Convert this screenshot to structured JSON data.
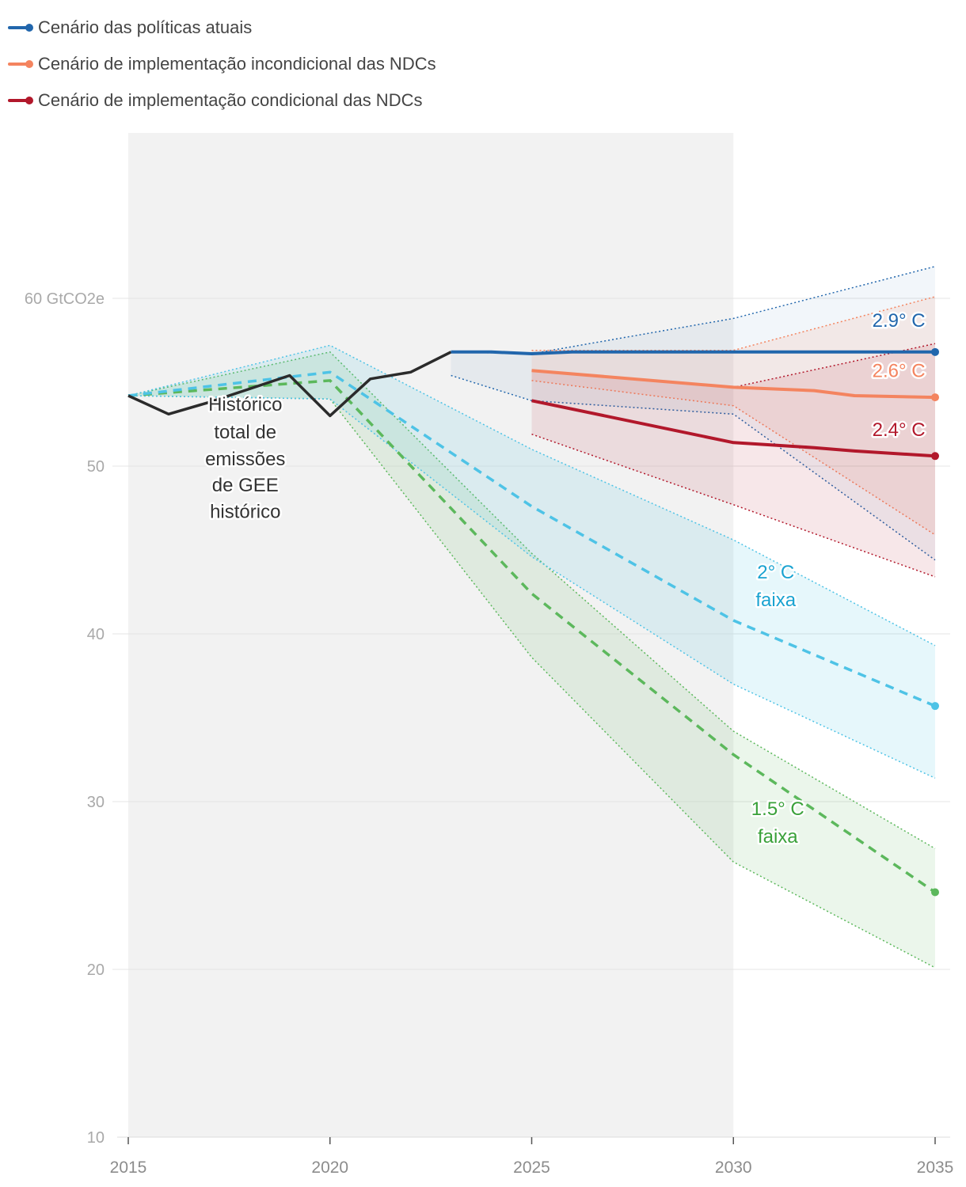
{
  "legend": {
    "items": [
      {
        "label": "Cenário das políticas atuais",
        "color": "#2166ac"
      },
      {
        "label": "Cenário de implementação incondicional das NDCs",
        "color": "#f4845f"
      },
      {
        "label": "Cenário de implementação condicional das NDCs",
        "color": "#b2182b"
      }
    ]
  },
  "chart_data": {
    "type": "line",
    "title": "",
    "xlabel": "",
    "ylabel": "GtCO2e",
    "xlim": [
      2015,
      2035
    ],
    "ylim": [
      10,
      70
    ],
    "x_ticks": [
      "2015",
      "2020",
      "2025",
      "2030",
      "2035"
    ],
    "y_ticks": [
      {
        "value": 60,
        "label": "60 GtCO2e"
      },
      {
        "value": 50,
        "label": "50"
      },
      {
        "value": 40,
        "label": "40"
      },
      {
        "value": 30,
        "label": "30"
      },
      {
        "value": 20,
        "label": "20"
      },
      {
        "value": 10,
        "label": "10"
      }
    ],
    "historical_shading": [
      2015,
      2030
    ],
    "historical": {
      "name": "Histórico total de emissões de GEE histórico",
      "color": "#2b2b2b",
      "points": [
        [
          2015,
          54.2
        ],
        [
          2016,
          53.1
        ],
        [
          2017,
          53.8
        ],
        [
          2018,
          54.6
        ],
        [
          2019,
          55.4
        ],
        [
          2020,
          53.0
        ],
        [
          2021,
          55.2
        ],
        [
          2022,
          55.6
        ],
        [
          2023,
          56.8
        ]
      ]
    },
    "bands": [
      {
        "name": "1.5° C faixa",
        "color": "#5cb85c",
        "upper": [
          [
            2015,
            54.2
          ],
          [
            2020,
            56.8
          ],
          [
            2025,
            44.8
          ],
          [
            2030,
            34.2
          ],
          [
            2035,
            27.2
          ]
        ],
        "lower": [
          [
            2015,
            54.2
          ],
          [
            2020,
            54.0
          ],
          [
            2025,
            38.6
          ],
          [
            2030,
            26.4
          ],
          [
            2035,
            20.1
          ]
        ],
        "median": [
          [
            2015,
            54.2
          ],
          [
            2020,
            55.1
          ],
          [
            2025,
            42.4
          ],
          [
            2030,
            32.8
          ],
          [
            2035,
            24.6
          ]
        ]
      },
      {
        "name": "2° C faixa",
        "color": "#4ec3e6",
        "upper": [
          [
            2015,
            54.2
          ],
          [
            2020,
            57.2
          ],
          [
            2025,
            51.0
          ],
          [
            2030,
            45.6
          ],
          [
            2035,
            39.3
          ]
        ],
        "lower": [
          [
            2015,
            54.2
          ],
          [
            2020,
            54.0
          ],
          [
            2025,
            44.6
          ],
          [
            2030,
            37.0
          ],
          [
            2035,
            31.4
          ]
        ],
        "median": [
          [
            2015,
            54.2
          ],
          [
            2020,
            55.6
          ],
          [
            2025,
            47.6
          ],
          [
            2030,
            40.8
          ],
          [
            2035,
            35.7
          ]
        ]
      },
      {
        "name": "Cenário das políticas atuais",
        "color": "#2166ac",
        "upper": [
          [
            2023,
            56.8
          ],
          [
            2025,
            56.7
          ],
          [
            2030,
            58.8
          ],
          [
            2035,
            61.9
          ]
        ],
        "lower": [
          [
            2023,
            55.4
          ],
          [
            2025,
            53.9
          ],
          [
            2030,
            53.1
          ],
          [
            2035,
            44.4
          ]
        ]
      },
      {
        "name": "Cenário de implementação incondicional das NDCs",
        "color": "#f4845f",
        "upper": [
          [
            2025,
            56.9
          ],
          [
            2030,
            56.9
          ],
          [
            2035,
            60.1
          ]
        ],
        "lower": [
          [
            2025,
            55.1
          ],
          [
            2030,
            53.6
          ],
          [
            2035,
            45.9
          ]
        ]
      },
      {
        "name": "Cenário de implementação condicional das NDCs",
        "color": "#b2182b",
        "upper": [
          [
            2025,
            55.7
          ],
          [
            2030,
            54.7
          ],
          [
            2035,
            57.3
          ]
        ],
        "lower": [
          [
            2025,
            51.9
          ],
          [
            2030,
            47.7
          ],
          [
            2035,
            43.4
          ]
        ]
      }
    ],
    "series": [
      {
        "name": "Cenário das políticas atuais",
        "color": "#2166ac",
        "points": [
          [
            2023,
            56.8
          ],
          [
            2024,
            56.8
          ],
          [
            2025,
            56.7
          ],
          [
            2026,
            56.8
          ],
          [
            2030,
            56.8
          ],
          [
            2035,
            56.8
          ]
        ]
      },
      {
        "name": "Cenário de implementação incondicional das NDCs",
        "color": "#f4845f",
        "points": [
          [
            2025,
            55.7
          ],
          [
            2030,
            54.7
          ],
          [
            2032,
            54.5
          ],
          [
            2033,
            54.2
          ],
          [
            2035,
            54.1
          ]
        ]
      },
      {
        "name": "Cenário de implementação condicional das NDCs",
        "color": "#b2182b",
        "points": [
          [
            2025,
            53.9
          ],
          [
            2030,
            51.4
          ],
          [
            2032,
            51.1
          ],
          [
            2033,
            50.9
          ],
          [
            2035,
            50.6
          ]
        ]
      }
    ],
    "annotations": [
      {
        "name": "label-2-9",
        "text": "2.9° C",
        "color": "#2166ac",
        "x": 2034.1,
        "y": 58.3
      },
      {
        "name": "label-2-6",
        "text": "2.6° C",
        "color": "#f4845f",
        "x": 2034.1,
        "y": 55.3
      },
      {
        "name": "label-2-4",
        "text": "2.4° C",
        "color": "#b2182b",
        "x": 2034.1,
        "y": 51.8
      },
      {
        "name": "label-2c-line1",
        "text": "2° C",
        "color": "#1aa3d1",
        "x": 2031.05,
        "y": 43.3
      },
      {
        "name": "label-2c-line2",
        "text": "faixa",
        "color": "#1aa3d1",
        "x": 2031.05,
        "y": 41.65
      },
      {
        "name": "label-15c-line1",
        "text": "1.5° C",
        "color": "#3aa13a",
        "x": 2031.1,
        "y": 29.2
      },
      {
        "name": "label-15c-line2",
        "text": "faixa",
        "color": "#3aa13a",
        "x": 2031.1,
        "y": 27.55
      },
      {
        "name": "label-hist-1",
        "text": "Histórico",
        "color": "#333333",
        "x": 2017.9,
        "y": 53.3
      },
      {
        "name": "label-hist-2",
        "text": "total de",
        "color": "#333333",
        "x": 2017.9,
        "y": 51.65
      },
      {
        "name": "label-hist-3",
        "text": "emissões",
        "color": "#333333",
        "x": 2017.9,
        "y": 50.05
      },
      {
        "name": "label-hist-4",
        "text": "de GEE",
        "color": "#333333",
        "x": 2017.9,
        "y": 48.5
      },
      {
        "name": "label-hist-5",
        "text": "histórico",
        "color": "#333333",
        "x": 2017.9,
        "y": 46.9
      }
    ]
  }
}
